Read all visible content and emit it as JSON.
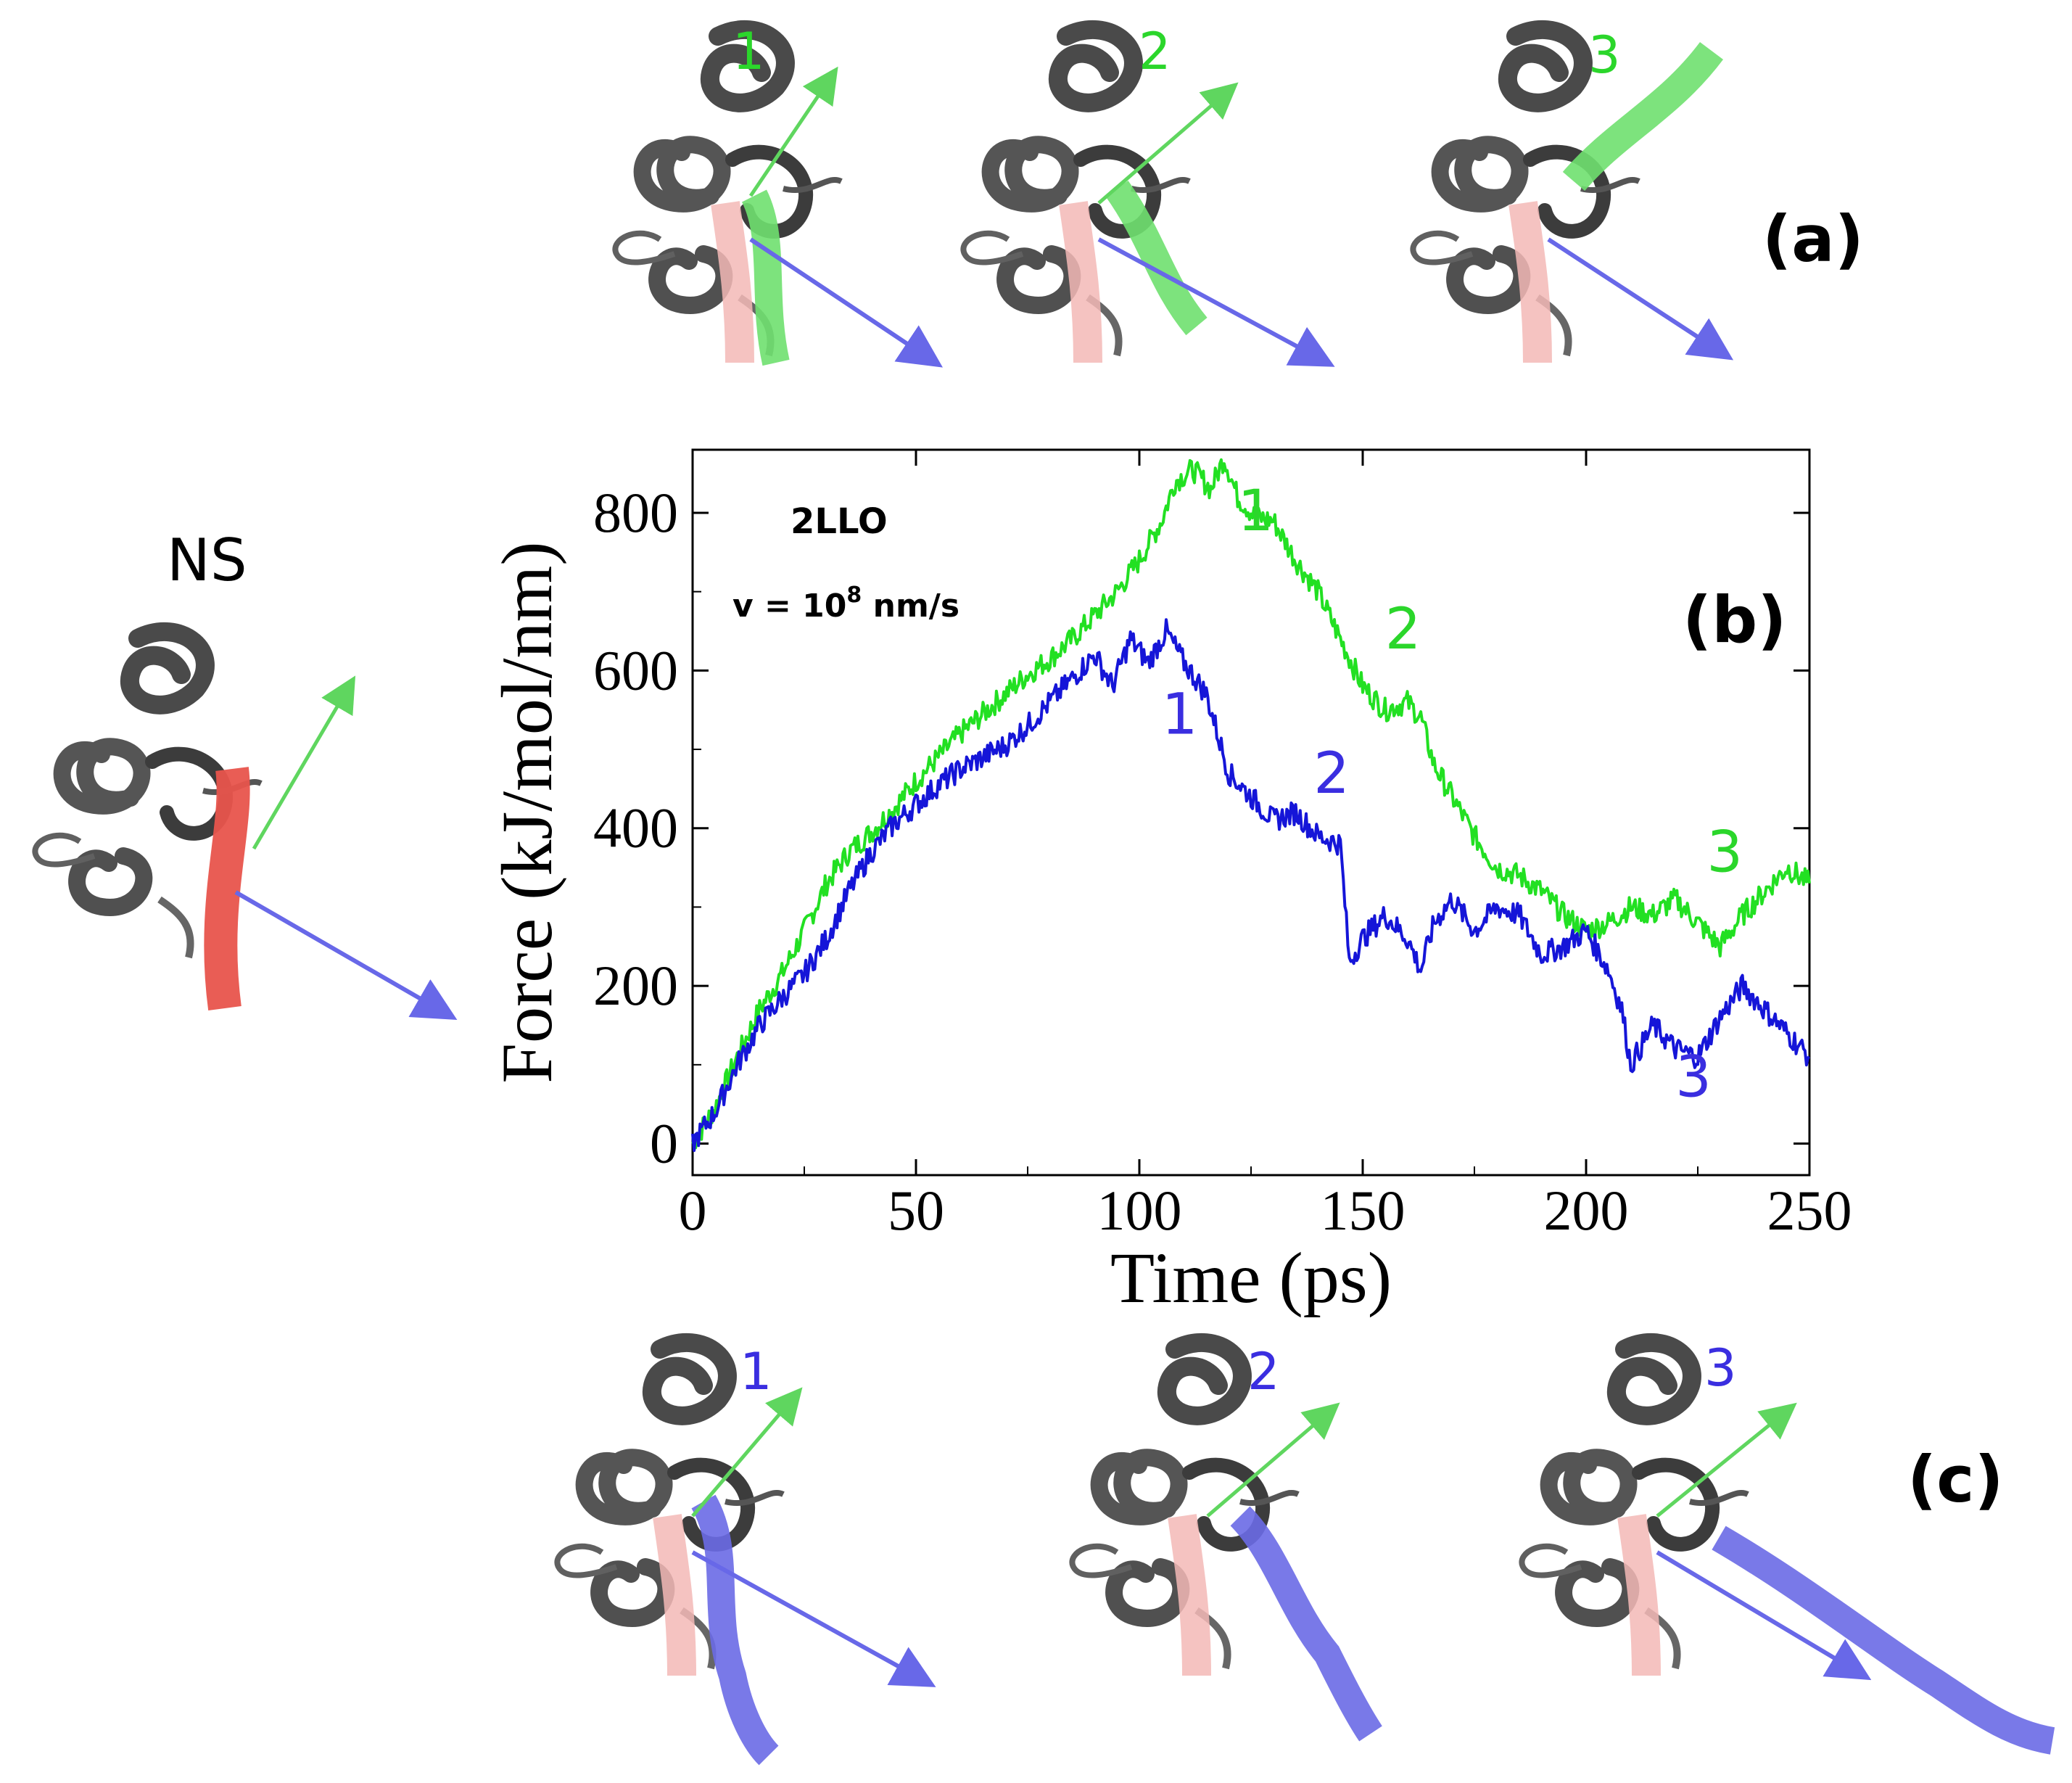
{
  "panels": {
    "a": {
      "label": "(a)",
      "snapshots": [
        "1",
        "2",
        "3"
      ]
    },
    "b": {
      "label": "(b)"
    },
    "c": {
      "label": "(c)",
      "snapshots": [
        "1",
        "2",
        "3"
      ]
    },
    "ns": {
      "label": "NS"
    }
  },
  "colors": {
    "green": "#22e022",
    "blue": "#1515d8",
    "green_label": "#2bd62b",
    "blue_label": "#3a2ee0",
    "helix_red": "#e8544c",
    "helix_pink": "#f3b8b6",
    "protein_gray": "#4a4a4a",
    "arrow_blue": "#6868e8",
    "arrow_green": "#5fd65f"
  },
  "chart_data": {
    "type": "line",
    "title": "",
    "protein_label": "2LLO",
    "velocity_label": "v = 10",
    "velocity_exponent": "8",
    "velocity_units": " nm/s",
    "xlabel": "Time (ps)",
    "ylabel": "Force (kJ/mol/nm)",
    "xlim": [
      0,
      250
    ],
    "ylim": [
      -40,
      880
    ],
    "xticks": [
      0,
      50,
      100,
      150,
      200,
      250
    ],
    "yticks": [
      0,
      200,
      400,
      600,
      800
    ],
    "xtick_labels": [
      "0",
      "50",
      "100",
      "150",
      "200",
      "250"
    ],
    "ytick_labels": [
      "0",
      "200",
      "400",
      "600",
      "800"
    ],
    "series": [
      {
        "name": "green",
        "color": "#22e022",
        "x": [
          0,
          5,
          10,
          15,
          20,
          25,
          30,
          35,
          40,
          45,
          50,
          55,
          60,
          65,
          70,
          75,
          80,
          85,
          90,
          95,
          100,
          105,
          108,
          112,
          116,
          119,
          122,
          126,
          130,
          135,
          140,
          145,
          150,
          155,
          160,
          163,
          166,
          170,
          175,
          180,
          185,
          190,
          195,
          200,
          205,
          210,
          215,
          220,
          225,
          230,
          235,
          240,
          245,
          250
        ],
        "values": [
          0,
          45,
          110,
          170,
          215,
          270,
          330,
          370,
          395,
          425,
          460,
          490,
          520,
          545,
          570,
          595,
          615,
          640,
          670,
          700,
          740,
          790,
          840,
          855,
          830,
          870,
          820,
          795,
          790,
          740,
          700,
          640,
          580,
          550,
          560,
          540,
          480,
          440,
          390,
          350,
          340,
          320,
          290,
          270,
          280,
          300,
          290,
          310,
          280,
          250,
          290,
          320,
          350,
          330
        ],
        "annotations": [
          {
            "label": "1",
            "x": 122,
            "y": 778
          },
          {
            "label": "2",
            "x": 155,
            "y": 628
          },
          {
            "label": "3",
            "x": 227,
            "y": 345
          }
        ]
      },
      {
        "name": "blue",
        "color": "#1515d8",
        "x": [
          0,
          5,
          10,
          15,
          20,
          25,
          30,
          35,
          40,
          45,
          50,
          55,
          60,
          65,
          70,
          75,
          80,
          85,
          90,
          94,
          98,
          102,
          106,
          110,
          115,
          120,
          125,
          130,
          135,
          140,
          145,
          147,
          150,
          155,
          160,
          163,
          166,
          170,
          175,
          180,
          185,
          190,
          195,
          200,
          205,
          208,
          210,
          215,
          220,
          225,
          230,
          235,
          240,
          245,
          250
        ],
        "values": [
          0,
          40,
          100,
          150,
          185,
          215,
          260,
          320,
          370,
          405,
          430,
          455,
          475,
          490,
          505,
          530,
          560,
          590,
          620,
          580,
          640,
          610,
          650,
          610,
          570,
          470,
          440,
          410,
          420,
          390,
          380,
          230,
          260,
          290,
          260,
          220,
          280,
          310,
          270,
          300,
          290,
          240,
          250,
          270,
          220,
          170,
          100,
          150,
          120,
          110,
          160,
          200,
          170,
          140,
          110
        ],
        "annotations": [
          {
            "label": "1",
            "x": 105,
            "y": 520
          },
          {
            "label": "2",
            "x": 139,
            "y": 445
          },
          {
            "label": "3",
            "x": 220,
            "y": 60
          }
        ]
      }
    ]
  }
}
